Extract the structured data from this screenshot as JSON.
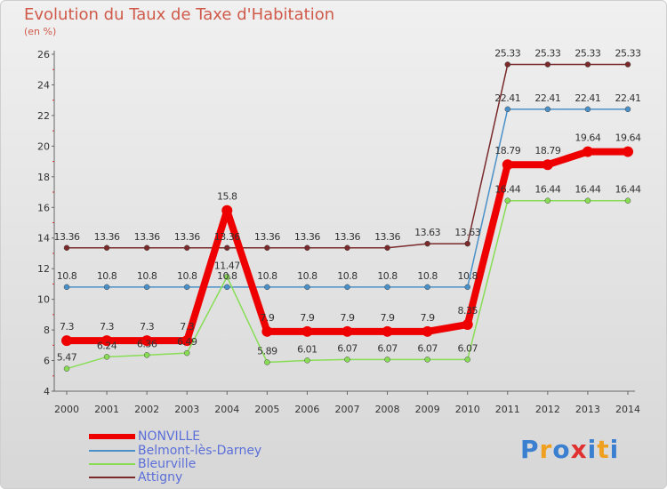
{
  "chart_data": {
    "type": "line",
    "title": "Evolution du Taux de Taxe d'Habitation",
    "unit_label": "(en %)",
    "x": [
      "2000",
      "2001",
      "2002",
      "2003",
      "2004",
      "2005",
      "2006",
      "2007",
      "2008",
      "2009",
      "2010",
      "2011",
      "2012",
      "2013",
      "2014"
    ],
    "ylim": [
      4,
      26
    ],
    "yticks": [
      "4",
      "6",
      "8",
      "10",
      "12",
      "14",
      "16",
      "18",
      "20",
      "22",
      "24",
      "26"
    ],
    "grid": false,
    "legend_position": "bottom-left",
    "series": [
      {
        "name": "NONVILLE",
        "color": "#ee0000",
        "values": [
          7.3,
          7.3,
          7.3,
          7.3,
          15.8,
          7.9,
          7.9,
          7.9,
          7.9,
          7.9,
          8.35,
          18.79,
          18.79,
          19.64,
          19.64
        ],
        "labels": [
          "7.3",
          "7.3",
          "7.3",
          "7.3",
          "15.8",
          "7.9",
          "7.9",
          "7.9",
          "7.9",
          "7.9",
          "8.35",
          "18.79",
          "18.79",
          "19.64",
          "19.64"
        ]
      },
      {
        "name": "Belmont-lès-Darney",
        "color": "#4a90c8",
        "values": [
          10.8,
          10.8,
          10.8,
          10.8,
          10.8,
          10.8,
          10.8,
          10.8,
          10.8,
          10.8,
          10.8,
          22.41,
          22.41,
          22.41,
          22.41
        ],
        "labels": [
          "10.8",
          "10.8",
          "10.8",
          "10.8",
          "10.8",
          "10.8",
          "10.8",
          "10.8",
          "10.8",
          "10.8",
          "10.8",
          "22.41",
          "22.41",
          "22.41",
          "22.41"
        ]
      },
      {
        "name": "Bleurville",
        "color": "#88dd55",
        "values": [
          5.47,
          6.24,
          6.36,
          6.49,
          11.47,
          5.89,
          6.01,
          6.07,
          6.07,
          6.07,
          6.07,
          16.44,
          16.44,
          16.44,
          16.44
        ],
        "labels": [
          "5.47",
          "6.24",
          "6.36",
          "6.49",
          "11.47",
          "5.89",
          "6.01",
          "6.07",
          "6.07",
          "6.07",
          "6.07",
          "16.44",
          "16.44",
          "16.44",
          "16.44"
        ]
      },
      {
        "name": "Attigny",
        "color": "#7a2a2a",
        "values": [
          13.36,
          13.36,
          13.36,
          13.36,
          13.36,
          13.36,
          13.36,
          13.36,
          13.36,
          13.63,
          13.63,
          25.33,
          25.33,
          25.33,
          25.33
        ],
        "labels": [
          "13.36",
          "13.36",
          "13.36",
          "13.36",
          "13.36",
          "13.36",
          "13.36",
          "13.36",
          "13.36",
          "13.63",
          "13.63",
          "25.33",
          "25.33",
          "25.33",
          "25.33"
        ]
      }
    ]
  },
  "branding": {
    "logo_letters": [
      "P",
      "r",
      "o",
      "x",
      "i",
      "t",
      "i"
    ],
    "logo_colors": [
      "#3a7fd0",
      "#f0a020",
      "#3a7fd0",
      "#e03030",
      "#3a7fd0",
      "#f0a020",
      "#3a7fd0"
    ]
  }
}
